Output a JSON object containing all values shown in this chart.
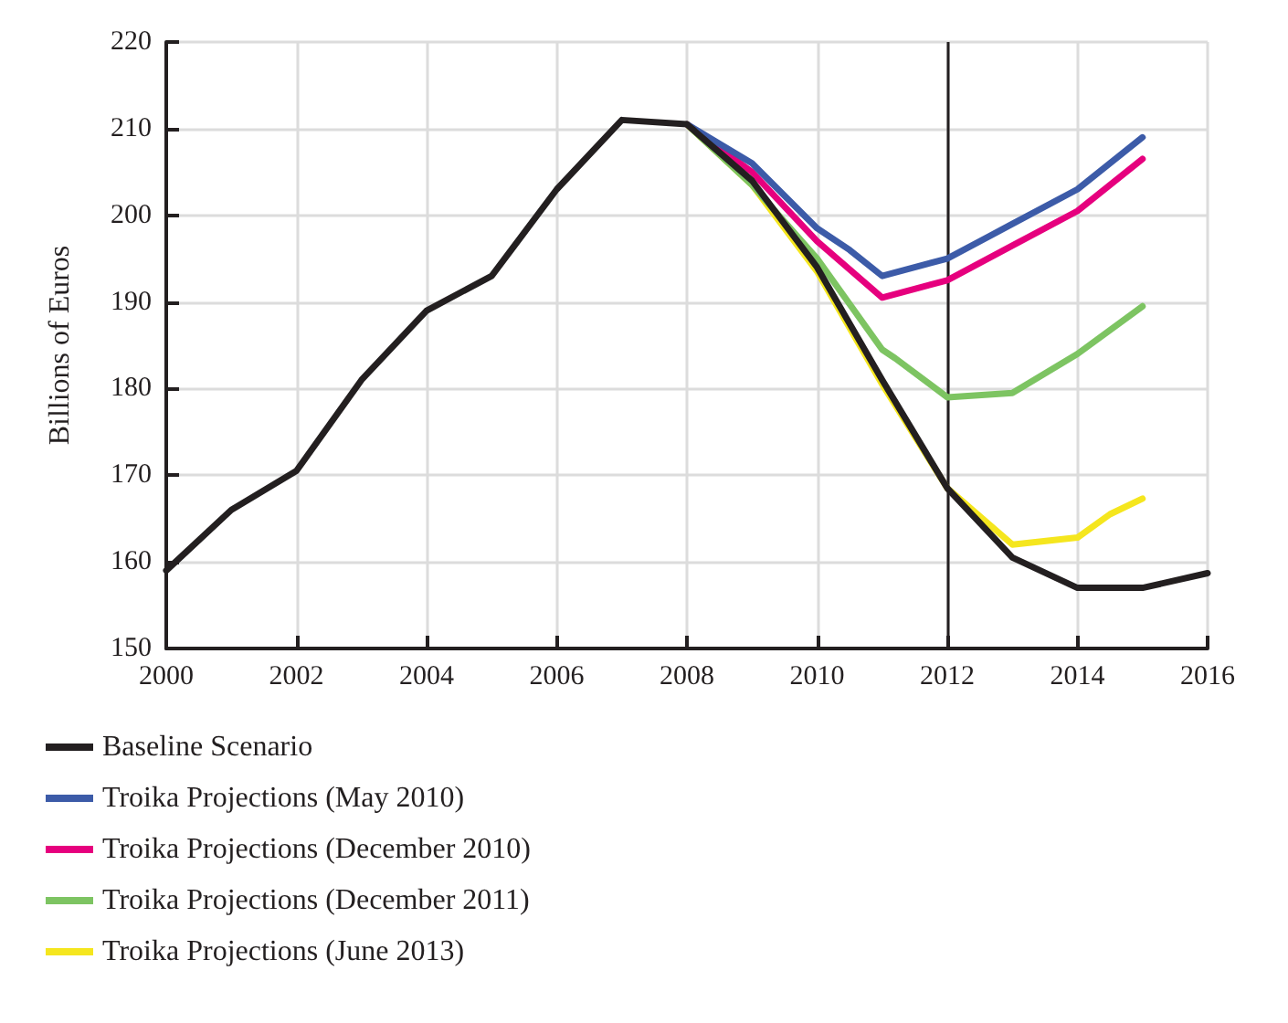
{
  "chart_data": {
    "type": "line",
    "ylabel": "Billions of Euros",
    "xlim": [
      2000,
      2016
    ],
    "xticks": [
      2000,
      2002,
      2004,
      2006,
      2008,
      2010,
      2012,
      2014,
      2016
    ],
    "ylim": [
      150,
      220
    ],
    "yticks": [
      150,
      160,
      170,
      180,
      190,
      200,
      210,
      220
    ],
    "grid": true,
    "legend": "bottom",
    "marker": "none",
    "line_style": "solid",
    "ref_lines": [
      {
        "axis": "x",
        "value": 2012,
        "color": "#231f20"
      }
    ],
    "series": [
      {
        "name": "Baseline Scenario",
        "color": "#231f20",
        "x": [
          2000,
          2001,
          2002,
          2003,
          2004,
          2005,
          2006,
          2007,
          2008,
          2009,
          2010,
          2011,
          2012,
          2013,
          2014,
          2015,
          2016
        ],
        "values": [
          159,
          166,
          170.5,
          181,
          189,
          193,
          203,
          211,
          210.5,
          204,
          194,
          181,
          168.5,
          160.5,
          157,
          157,
          158.7
        ]
      },
      {
        "name": "Troika Projections (May 2010)",
        "color": "#3c5ba8",
        "x": [
          2008,
          2009,
          2010,
          2010.5,
          2011,
          2012,
          2013,
          2014,
          2015
        ],
        "values": [
          210.5,
          206,
          198.5,
          196,
          193,
          195,
          199,
          203,
          209
        ]
      },
      {
        "name": "Troika Projections (December 2010)",
        "color": "#e6007e",
        "x": [
          2008,
          2009,
          2010,
          2011,
          2012,
          2013,
          2014,
          2015
        ],
        "values": [
          210.5,
          205,
          197,
          190.5,
          192.5,
          196.5,
          200.5,
          206.5
        ]
      },
      {
        "name": "Troika Projections (December 2011)",
        "color": "#7dc462",
        "x": [
          2008,
          2009,
          2010,
          2011,
          2011.2,
          2012,
          2013,
          2014,
          2015
        ],
        "values": [
          210.5,
          203.5,
          195,
          184.5,
          183.5,
          179,
          179.5,
          184,
          189.5
        ]
      },
      {
        "name": "Troika Projections (June 2013)",
        "color": "#f5e61e",
        "x": [
          2008,
          2009,
          2010,
          2011,
          2012,
          2013,
          2014,
          2014.5,
          2015
        ],
        "values": [
          210.5,
          203.5,
          193.5,
          180.5,
          168.5,
          162,
          162.8,
          165.5,
          167.3
        ]
      }
    ]
  }
}
